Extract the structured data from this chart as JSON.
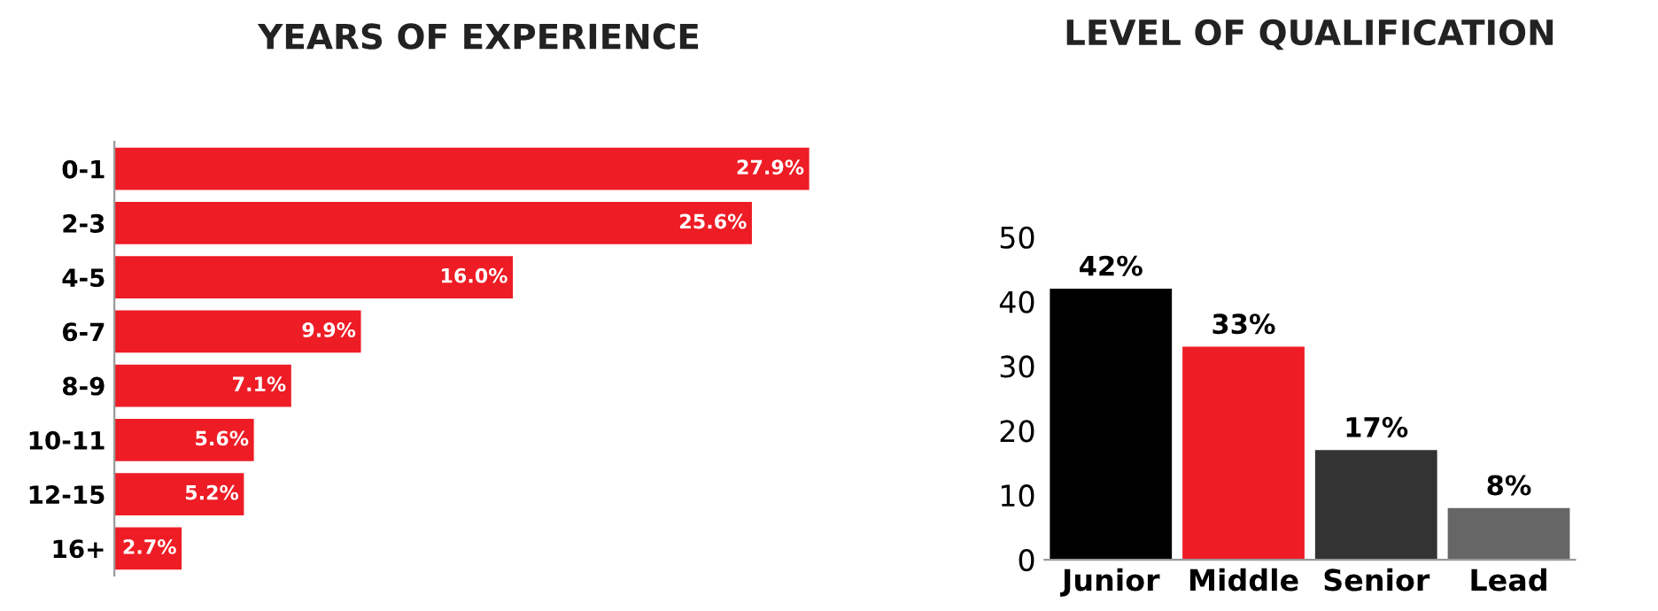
{
  "chart_data": [
    {
      "type": "bar",
      "orientation": "horizontal",
      "title": "YEARS OF EXPERIENCE",
      "categories": [
        "0-1",
        "2-3",
        "4-5",
        "6-7",
        "8-9",
        "10-11",
        "12-15",
        "16+"
      ],
      "series": [
        {
          "color": "#ee1c25",
          "values": [
            27.9,
            25.6,
            16.0,
            9.9,
            7.1,
            5.6,
            5.2,
            2.7
          ],
          "value_labels": [
            "27.9%",
            "25.6%",
            "16.0%",
            "9.9%",
            "7.1%",
            "5.6%",
            "5.2%",
            "2.7%"
          ]
        }
      ],
      "tick_labels": "y",
      "grid": false,
      "legend": false
    },
    {
      "type": "bar",
      "title": "LEVEL OF QUALIFICATION",
      "categories": [
        "Junior",
        "Middle",
        "Senior",
        "Lead"
      ],
      "series": [
        {
          "colors": [
            "#000000",
            "#ee1c25",
            "#333333",
            "#666666"
          ],
          "values": [
            42,
            33,
            17,
            8
          ],
          "value_labels": [
            "42%",
            "33%",
            "17%",
            "8%"
          ]
        }
      ],
      "ylim": [
        0,
        50
      ],
      "yticks": [
        0,
        10,
        20,
        30,
        40,
        50
      ],
      "grid": false,
      "legend": false
    }
  ]
}
